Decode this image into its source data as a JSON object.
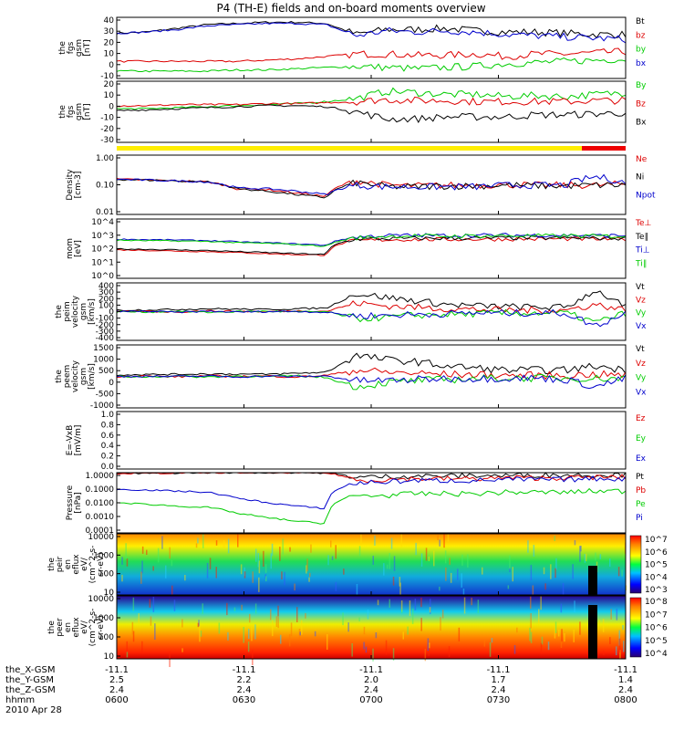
{
  "title": "P4 (TH-E) fields and on-board moments overview",
  "date": "2010 Apr 28",
  "time_axis": {
    "tick_times": [
      "0600",
      "0630",
      "0700",
      "0730",
      "0800"
    ],
    "rows": [
      {
        "label": "the_X-GSM",
        "values": [
          "-11.1",
          "-11.1",
          "-11.1",
          "-11.1",
          "-11.1"
        ]
      },
      {
        "label": "the_Y-GSM",
        "values": [
          "2.5",
          "2.2",
          "2.0",
          "1.7",
          "1.4"
        ]
      },
      {
        "label": "the_Z-GSM",
        "values": [
          "2.4",
          "2.4",
          "2.4",
          "2.4",
          "2.4"
        ]
      },
      {
        "label": "hhmm",
        "values": [
          "0600",
          "0630",
          "0700",
          "0730",
          "0800"
        ]
      }
    ]
  },
  "chart_data": [
    {
      "panel": "fgs_gsm_1",
      "type": "line",
      "ylabel": [
        "the",
        "fgs",
        "gsm",
        "[nT]"
      ],
      "ylim": [
        -10,
        40
      ],
      "ticks": [
        "40",
        "30",
        "20",
        "10",
        "0",
        "-10"
      ],
      "series": [
        {
          "name": "Bt",
          "color": "#000000",
          "values": [
            27,
            28,
            31,
            34,
            35,
            36,
            36,
            35,
            26,
            30,
            30,
            31,
            29,
            28,
            28,
            27,
            26,
            26
          ]
        },
        {
          "name": "bz",
          "color": "#dd0000",
          "values": [
            4,
            4,
            4,
            4,
            4,
            5,
            6,
            8,
            10,
            10,
            9,
            9,
            10,
            8,
            10,
            10,
            11,
            12
          ]
        },
        {
          "name": "by",
          "color": "#00cc00",
          "values": [
            -4,
            -4,
            -4,
            -4,
            -3,
            -3,
            -2,
            -1,
            0,
            -1,
            -2,
            -1,
            0,
            2,
            3,
            4,
            5,
            6
          ]
        },
        {
          "name": "bx",
          "color": "#0000cc",
          "values": [
            27,
            28,
            30,
            33,
            34,
            35,
            35,
            34,
            25,
            29,
            28,
            29,
            28,
            26,
            25,
            24,
            23,
            22
          ]
        }
      ]
    },
    {
      "panel": "fgs_gsm_2",
      "type": "line",
      "ylabel": [
        "the",
        "fgs",
        "gsm",
        "[nT]"
      ],
      "ylim": [
        -35,
        25
      ],
      "ticks": [
        "20",
        "10",
        "0",
        "-10",
        "-20",
        "-30"
      ],
      "series": [
        {
          "name": "By",
          "color": "#00cc00",
          "values": [
            -2,
            -2,
            -1,
            0,
            1,
            2,
            3,
            5,
            8,
            15,
            14,
            12,
            12,
            10,
            11,
            10,
            12,
            14
          ]
        },
        {
          "name": "Bz",
          "color": "#dd0000",
          "values": [
            1,
            1,
            2,
            2,
            2,
            3,
            3,
            4,
            5,
            7,
            6,
            6,
            5,
            5,
            5,
            5,
            6,
            6
          ]
        },
        {
          "name": "Bx",
          "color": "#000000",
          "values": [
            -4,
            -3,
            -2,
            -1,
            0,
            1,
            1,
            0,
            -5,
            -12,
            -12,
            -10,
            -10,
            -10,
            -8,
            -8,
            -7,
            -6
          ]
        }
      ]
    },
    {
      "panel": "density",
      "type": "line",
      "ylabel": [
        "Density",
        "[cm-3]"
      ],
      "scale": "log",
      "ylim": [
        0.01,
        10
      ],
      "ticks": [
        "1.00",
        "0.10",
        "0.01"
      ],
      "series": [
        {
          "name": "Ne",
          "color": "#dd0000",
          "values": [
            0.6,
            0.55,
            0.5,
            0.45,
            0.2,
            0.18,
            0.12,
            0.08,
            0.5,
            0.3,
            0.28,
            0.3,
            0.3,
            0.32,
            0.3,
            0.3,
            0.3,
            0.35
          ]
        },
        {
          "name": "Ni",
          "color": "#000000",
          "values": [
            0.6,
            0.55,
            0.5,
            0.45,
            0.2,
            0.15,
            0.1,
            0.07,
            0.4,
            0.25,
            0.25,
            0.28,
            0.28,
            0.3,
            0.28,
            0.28,
            0.3,
            0.3
          ]
        },
        {
          "name": "Npot",
          "color": "#0000cc",
          "values": [
            0.6,
            0.55,
            0.5,
            0.45,
            0.22,
            0.2,
            0.15,
            0.1,
            0.3,
            0.25,
            0.25,
            0.25,
            0.25,
            0.3,
            0.3,
            0.3,
            0.8,
            0.4
          ]
        }
      ]
    },
    {
      "panel": "temperature",
      "type": "line",
      "ylabel": [
        "mom",
        "[eV]"
      ],
      "scale": "log",
      "ylim": [
        1,
        100000
      ],
      "ticks": [
        "10^4",
        "10^3",
        "10^2",
        "10^1",
        "10^0"
      ],
      "series": [
        {
          "name": "Te⊥",
          "color": "#dd0000",
          "values": [
            250,
            230,
            200,
            180,
            150,
            120,
            100,
            90,
            1500,
            1800,
            1900,
            1900,
            2000,
            2000,
            2100,
            2100,
            2000,
            2000
          ]
        },
        {
          "name": "Te∥",
          "color": "#000000",
          "values": [
            300,
            280,
            250,
            220,
            180,
            150,
            120,
            100,
            2000,
            2200,
            2300,
            2400,
            2400,
            2500,
            2500,
            2500,
            2400,
            2300
          ]
        },
        {
          "name": "Ti⊥",
          "color": "#0000cc",
          "values": [
            2000,
            1800,
            1700,
            1500,
            1200,
            1000,
            800,
            600,
            3000,
            4000,
            4200,
            4000,
            4200,
            4300,
            4200,
            4300,
            4000,
            4000
          ]
        },
        {
          "name": "Ti∥",
          "color": "#00cc00",
          "values": [
            1600,
            1500,
            1400,
            1300,
            1000,
            900,
            700,
            500,
            2500,
            3500,
            3800,
            3600,
            3800,
            3900,
            3800,
            3900,
            3600,
            3600
          ]
        }
      ]
    },
    {
      "panel": "peim_velocity",
      "type": "line",
      "ylabel": [
        "the",
        "peim",
        "velocity",
        "gsm",
        "[km/s]"
      ],
      "ylim": [
        -400,
        400
      ],
      "ticks": [
        "400",
        "300",
        "200",
        "100",
        "0",
        "-100",
        "-200",
        "-300",
        "-400"
      ],
      "series": [
        {
          "name": "Vt",
          "color": "#000000",
          "values": [
            20,
            25,
            30,
            40,
            35,
            30,
            40,
            50,
            250,
            200,
            150,
            100,
            80,
            70,
            60,
            60,
            300,
            60
          ]
        },
        {
          "name": "Vz",
          "color": "#dd0000",
          "values": [
            0,
            5,
            -5,
            10,
            5,
            0,
            10,
            5,
            120,
            80,
            60,
            40,
            30,
            20,
            20,
            20,
            100,
            20
          ]
        },
        {
          "name": "Vy",
          "color": "#00cc00",
          "values": [
            0,
            -5,
            5,
            -10,
            0,
            5,
            -5,
            0,
            -100,
            -80,
            -50,
            -40,
            -30,
            -20,
            -20,
            -20,
            -150,
            -20
          ]
        },
        {
          "name": "Vx",
          "color": "#0000cc",
          "values": [
            0,
            5,
            -10,
            5,
            -5,
            0,
            5,
            -10,
            -60,
            -50,
            -40,
            -30,
            -20,
            -20,
            -20,
            -20,
            -200,
            -20
          ]
        }
      ]
    },
    {
      "panel": "peem_velocity",
      "type": "line",
      "ylabel": [
        "the",
        "peem",
        "velocity",
        "gsm",
        "[km/s]"
      ],
      "ylim": [
        -1500,
        1500
      ],
      "ticks": [
        "1500",
        "1000",
        "500",
        "0",
        "-500",
        "-1000"
      ],
      "series": [
        {
          "name": "Vt",
          "color": "#000000",
          "values": [
            80,
            90,
            100,
            120,
            110,
            100,
            150,
            200,
            1000,
            800,
            700,
            500,
            400,
            300,
            300,
            300,
            500,
            300
          ]
        },
        {
          "name": "Vz",
          "color": "#dd0000",
          "values": [
            0,
            20,
            -20,
            30,
            0,
            20,
            -30,
            50,
            300,
            200,
            150,
            100,
            80,
            50,
            50,
            50,
            100,
            50
          ]
        },
        {
          "name": "Vy",
          "color": "#00cc00",
          "values": [
            0,
            -20,
            20,
            -30,
            20,
            -10,
            30,
            -50,
            -500,
            -300,
            -200,
            -150,
            -100,
            -80,
            -80,
            -80,
            -100,
            -80
          ]
        },
        {
          "name": "Vx",
          "color": "#0000cc",
          "values": [
            0,
            10,
            -10,
            20,
            -20,
            10,
            -10,
            20,
            -200,
            -200,
            -150,
            -100,
            -100,
            -80,
            -80,
            -150,
            -500,
            -80
          ]
        }
      ]
    },
    {
      "panel": "efield",
      "type": "line",
      "ylabel": [
        "E=-VxB",
        "[mV/m]"
      ],
      "ylim": [
        0,
        1
      ],
      "ticks": [
        "1.0",
        "0.8",
        "0.6",
        "0.4",
        "0.2",
        "0.0"
      ],
      "series": [
        {
          "name": "Ez",
          "color": "#dd0000",
          "values": []
        },
        {
          "name": "Ey",
          "color": "#00cc00",
          "values": []
        },
        {
          "name": "Ex",
          "color": "#0000cc",
          "values": []
        }
      ]
    },
    {
      "panel": "pressure",
      "type": "line",
      "ylabel": [
        "Pressure",
        "[nPa]"
      ],
      "scale": "log",
      "ylim": [
        0.0001,
        1
      ],
      "ticks": [
        "1.0000",
        "0.1000",
        "0.0100",
        "0.0010",
        "0.0001"
      ],
      "series": [
        {
          "name": "Pt",
          "color": "#000000",
          "values": [
            0.9,
            0.9,
            0.95,
            1.0,
            1.0,
            1.0,
            1.0,
            0.95,
            0.5,
            0.55,
            0.6,
            0.6,
            0.65,
            0.65,
            0.7,
            0.7,
            0.7,
            0.75
          ]
        },
        {
          "name": "Pb",
          "color": "#dd0000",
          "values": [
            0.9,
            0.9,
            0.95,
            1.0,
            1.0,
            1.0,
            1.0,
            0.95,
            0.3,
            0.35,
            0.4,
            0.4,
            0.4,
            0.45,
            0.45,
            0.45,
            0.5,
            0.5
          ]
        },
        {
          "name": "Pe",
          "color": "#00cc00",
          "values": [
            0.01,
            0.008,
            0.006,
            0.005,
            0.002,
            0.001,
            0.0006,
            0.0004,
            0.03,
            0.03,
            0.04,
            0.04,
            0.04,
            0.05,
            0.05,
            0.05,
            0.06,
            0.06
          ]
        },
        {
          "name": "Pi",
          "color": "#0000cc",
          "values": [
            0.08,
            0.07,
            0.06,
            0.05,
            0.02,
            0.01,
            0.006,
            0.004,
            0.2,
            0.25,
            0.3,
            0.3,
            0.3,
            0.35,
            0.35,
            0.35,
            0.4,
            0.4
          ]
        }
      ]
    },
    {
      "panel": "peir_spectrogram",
      "type": "heatmap",
      "ylabel": [
        "the",
        "peir",
        "en",
        "eflux",
        "eV/",
        "(cm^2-s-",
        "sr-eV)"
      ],
      "scale": "log",
      "ylim": [
        10,
        20000
      ],
      "ticks": [
        "10000",
        "1000",
        "100",
        "10"
      ],
      "colorbar": {
        "ticks": [
          "10^7",
          "10^6",
          "10^5",
          "10^4",
          "10^3"
        ]
      }
    },
    {
      "panel": "peer_spectrogram",
      "type": "heatmap",
      "ylabel": [
        "the",
        "peer",
        "en",
        "eflux",
        "eV/",
        "(cm^2-s-",
        "sr-eV)"
      ],
      "scale": "log",
      "ylim": [
        8,
        20000
      ],
      "ticks": [
        "10000",
        "1000",
        "100",
        "10"
      ],
      "colorbar": {
        "ticks": [
          "10^8",
          "10^7",
          "10^6",
          "10^5",
          "10^4"
        ]
      }
    }
  ]
}
